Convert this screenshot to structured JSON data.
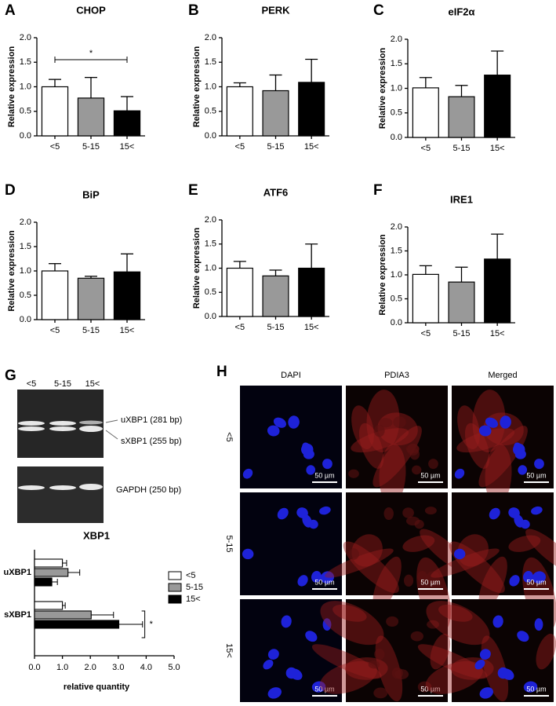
{
  "chart_data": [
    {
      "type": "bar",
      "panel_label": "A",
      "title": "CHOP",
      "y_label": "Relative expression",
      "categories": [
        "<5",
        "5-15",
        "15<"
      ],
      "values": [
        1.0,
        0.77,
        0.51
      ],
      "errors": [
        0.15,
        0.42,
        0.29
      ],
      "colors": [
        "#ffffff",
        "#999999",
        "#000000"
      ],
      "ylim": [
        0,
        2
      ],
      "yticks": [
        {
          "value": 0,
          "label": "0.0"
        },
        {
          "value": 0.5,
          "label": "0.5"
        },
        {
          "value": 1,
          "label": "1.0"
        },
        {
          "value": 1.5,
          "label": "1.5"
        },
        {
          "value": 2,
          "label": "2.0"
        }
      ],
      "annotation": "*"
    },
    {
      "type": "bar",
      "panel_label": "B",
      "title": "PERK",
      "y_label": "Relative expression",
      "categories": [
        "<5",
        "5-15",
        "15<"
      ],
      "values": [
        1.0,
        0.92,
        1.09
      ],
      "errors": [
        0.08,
        0.32,
        0.47
      ],
      "colors": [
        "#ffffff",
        "#999999",
        "#000000"
      ],
      "ylim": [
        0,
        2
      ],
      "yticks": [
        {
          "value": 0,
          "label": "0.0"
        },
        {
          "value": 0.5,
          "label": "0.5"
        },
        {
          "value": 1,
          "label": "1.0"
        },
        {
          "value": 1.5,
          "label": "1.5"
        },
        {
          "value": 2,
          "label": "2.0"
        }
      ]
    },
    {
      "type": "bar",
      "panel_label": "C",
      "title": "eIF2α",
      "y_label": "Relative expression",
      "categories": [
        "<5",
        "5-15",
        "15<"
      ],
      "values": [
        1.01,
        0.83,
        1.27
      ],
      "errors": [
        0.21,
        0.23,
        0.49
      ],
      "colors": [
        "#ffffff",
        "#999999",
        "#000000"
      ],
      "ylim": [
        0,
        2
      ],
      "yticks": [
        {
          "value": 0,
          "label": "0.0"
        },
        {
          "value": 0.5,
          "label": "0.5"
        },
        {
          "value": 1,
          "label": "1.0"
        },
        {
          "value": 1.5,
          "label": "1.5"
        },
        {
          "value": 2,
          "label": "2.0"
        }
      ]
    },
    {
      "type": "bar",
      "panel_label": "D",
      "title": "BiP",
      "y_label": "Relative expression",
      "categories": [
        "<5",
        "5-15",
        "15<"
      ],
      "values": [
        1.0,
        0.85,
        0.98
      ],
      "errors": [
        0.15,
        0.04,
        0.37
      ],
      "colors": [
        "#ffffff",
        "#999999",
        "#000000"
      ],
      "ylim": [
        0,
        2
      ],
      "yticks": [
        {
          "value": 0,
          "label": "0.0"
        },
        {
          "value": 0.5,
          "label": "0.5"
        },
        {
          "value": 1,
          "label": "1.0"
        },
        {
          "value": 1.5,
          "label": "1.5"
        },
        {
          "value": 2,
          "label": "2.0"
        }
      ]
    },
    {
      "type": "bar",
      "panel_label": "E",
      "title": "ATF6",
      "y_label": "Relative expression",
      "categories": [
        "<5",
        "5-15",
        "15<"
      ],
      "values": [
        1.0,
        0.84,
        1.0
      ],
      "errors": [
        0.14,
        0.12,
        0.5
      ],
      "colors": [
        "#ffffff",
        "#999999",
        "#000000"
      ],
      "ylim": [
        0,
        2
      ],
      "yticks": [
        {
          "value": 0,
          "label": "0.0"
        },
        {
          "value": 0.5,
          "label": "0.5"
        },
        {
          "value": 1,
          "label": "1.0"
        },
        {
          "value": 1.5,
          "label": "1.5"
        },
        {
          "value": 2,
          "label": "2.0"
        }
      ]
    },
    {
      "type": "bar",
      "panel_label": "F",
      "title": "IRE1",
      "y_label": "Relative expression",
      "categories": [
        "<5",
        "5-15",
        "15<"
      ],
      "values": [
        1.01,
        0.85,
        1.33
      ],
      "errors": [
        0.18,
        0.31,
        0.52
      ],
      "colors": [
        "#ffffff",
        "#999999",
        "#000000"
      ],
      "ylim": [
        0,
        2
      ],
      "yticks": [
        {
          "value": 0,
          "label": "0.0"
        },
        {
          "value": 0.5,
          "label": "0.5"
        },
        {
          "value": 1,
          "label": "1.0"
        },
        {
          "value": 1.5,
          "label": "1.5"
        },
        {
          "value": 2,
          "label": "2.0"
        }
      ]
    },
    {
      "type": "hbar",
      "title": "XBP1",
      "x_label": "relative quantity",
      "categories": [
        "uXBP1",
        "sXBP1"
      ],
      "series": [
        {
          "name": "<5",
          "color": "#ffffff",
          "values": [
            1.0,
            1.0
          ],
          "errors": [
            0.15,
            0.1
          ]
        },
        {
          "name": "5-15",
          "color": "#999999",
          "values": [
            1.2,
            2.03
          ],
          "errors": [
            0.42,
            0.8
          ]
        },
        {
          "name": "15<",
          "color": "#000000",
          "values": [
            0.62,
            3.02
          ],
          "errors": [
            0.2,
            0.85
          ]
        }
      ],
      "xlim": [
        0,
        5
      ],
      "xticks": [
        {
          "value": 0,
          "label": "0.0"
        },
        {
          "value": 1,
          "label": "1.0"
        },
        {
          "value": 2,
          "label": "2.0"
        },
        {
          "value": 3,
          "label": "3.0"
        },
        {
          "value": 4,
          "label": "4.0"
        },
        {
          "value": 5,
          "label": "5.0"
        }
      ],
      "annotation": "*"
    }
  ],
  "gel": {
    "panel_label": "G",
    "lanes": [
      "<5",
      "5-15",
      "15<"
    ],
    "bands": [
      "uXBP1 (281 bp)",
      "sXBP1 (255 bp)"
    ],
    "control": "GAPDH (250 bp)"
  },
  "micrographs": {
    "panel_label": "H",
    "columns": [
      "DAPI",
      "PDIA3",
      "Merged"
    ],
    "rows": [
      "<5",
      "5-15",
      "15<"
    ],
    "scale_bar": "50 µm"
  }
}
